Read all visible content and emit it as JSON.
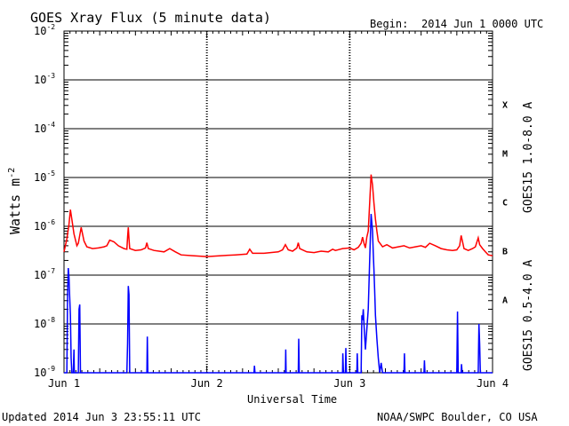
{
  "chart_data": {
    "type": "line",
    "title": "GOES Xray Flux (5 minute data)",
    "begin_label": "Begin:",
    "begin_value": "2014 Jun 1 0000 UTC",
    "xlabel": "Universal Time",
    "ylabel_base": "Watts m",
    "ylabel_sup": "-2",
    "y_scale": "log",
    "ylim": [
      1e-09,
      0.01
    ],
    "y_ticks": [
      {
        "mant": "10",
        "exp": "-9",
        "value": 1e-09
      },
      {
        "mant": "10",
        "exp": "-8",
        "value": 1e-08
      },
      {
        "mant": "10",
        "exp": "-7",
        "value": 1e-07
      },
      {
        "mant": "10",
        "exp": "-6",
        "value": 1e-06
      },
      {
        "mant": "10",
        "exp": "-5",
        "value": 1e-05
      },
      {
        "mant": "10",
        "exp": "-4",
        "value": 0.0001
      },
      {
        "mant": "10",
        "exp": "-3",
        "value": 0.001
      },
      {
        "mant": "10",
        "exp": "-2",
        "value": 0.01
      }
    ],
    "x_ticks": [
      "Jun 1",
      "Jun 2",
      "Jun 3",
      "Jun 4"
    ],
    "x_range_days": [
      0,
      3
    ],
    "flare_classes": [
      {
        "label": "A",
        "min": 1e-08
      },
      {
        "label": "B",
        "min": 1e-07
      },
      {
        "label": "C",
        "min": 1e-06
      },
      {
        "label": "M",
        "min": 1e-05
      },
      {
        "label": "X",
        "min": 0.0001
      }
    ],
    "series": [
      {
        "name": "GOES15 1.0-8.0 A",
        "color": "#ff0000",
        "points": [
          [
            0,
            3e-07
          ],
          [
            0.02,
            5.5e-07
          ],
          [
            0.035,
            1.1e-06
          ],
          [
            0.045,
            2.2e-06
          ],
          [
            0.055,
            1.4e-06
          ],
          [
            0.07,
            7e-07
          ],
          [
            0.09,
            4e-07
          ],
          [
            0.1,
            4.5e-07
          ],
          [
            0.12,
            9.5e-07
          ],
          [
            0.14,
            5e-07
          ],
          [
            0.16,
            3.8e-07
          ],
          [
            0.2,
            3.5e-07
          ],
          [
            0.24,
            3.6e-07
          ],
          [
            0.28,
            3.8e-07
          ],
          [
            0.3,
            4e-07
          ],
          [
            0.32,
            5.2e-07
          ],
          [
            0.35,
            4.8e-07
          ],
          [
            0.38,
            4e-07
          ],
          [
            0.42,
            3.5e-07
          ],
          [
            0.44,
            3.4e-07
          ],
          [
            0.445,
            6e-07
          ],
          [
            0.45,
            9.5e-07
          ],
          [
            0.455,
            5.5e-07
          ],
          [
            0.46,
            3.5e-07
          ],
          [
            0.5,
            3.2e-07
          ],
          [
            0.54,
            3.3e-07
          ],
          [
            0.57,
            3.6e-07
          ],
          [
            0.58,
            4.6e-07
          ],
          [
            0.59,
            3.5e-07
          ],
          [
            0.63,
            3.2e-07
          ],
          [
            0.7,
            3e-07
          ],
          [
            0.74,
            3.5e-07
          ],
          [
            0.78,
            3e-07
          ],
          [
            0.82,
            2.6e-07
          ],
          [
            0.9,
            2.5e-07
          ],
          [
            1.0,
            2.4e-07
          ],
          [
            1.1,
            2.5e-07
          ],
          [
            1.2,
            2.6e-07
          ],
          [
            1.28,
            2.7e-07
          ],
          [
            1.3,
            3.4e-07
          ],
          [
            1.32,
            2.8e-07
          ],
          [
            1.4,
            2.8e-07
          ],
          [
            1.5,
            3e-07
          ],
          [
            1.53,
            3.3e-07
          ],
          [
            1.55,
            4.2e-07
          ],
          [
            1.57,
            3.3e-07
          ],
          [
            1.6,
            3.1e-07
          ],
          [
            1.63,
            3.6e-07
          ],
          [
            1.64,
            4.6e-07
          ],
          [
            1.65,
            3.5e-07
          ],
          [
            1.7,
            3e-07
          ],
          [
            1.75,
            2.9e-07
          ],
          [
            1.8,
            3.1e-07
          ],
          [
            1.85,
            3e-07
          ],
          [
            1.88,
            3.4e-07
          ],
          [
            1.9,
            3.2e-07
          ],
          [
            1.95,
            3.5e-07
          ],
          [
            2.0,
            3.6e-07
          ],
          [
            2.03,
            3.3e-07
          ],
          [
            2.06,
            3.7e-07
          ],
          [
            2.08,
            4.5e-07
          ],
          [
            2.09,
            6e-07
          ],
          [
            2.1,
            4.5e-07
          ],
          [
            2.11,
            3.6e-07
          ],
          [
            2.12,
            6e-07
          ],
          [
            2.13,
            8e-07
          ],
          [
            2.14,
            3e-06
          ],
          [
            2.15,
            1.15e-05
          ],
          [
            2.16,
            7e-06
          ],
          [
            2.17,
            3e-06
          ],
          [
            2.18,
            1.4e-06
          ],
          [
            2.19,
            8e-07
          ],
          [
            2.2,
            5e-07
          ],
          [
            2.23,
            3.8e-07
          ],
          [
            2.26,
            4.2e-07
          ],
          [
            2.3,
            3.6e-07
          ],
          [
            2.34,
            3.8e-07
          ],
          [
            2.38,
            4e-07
          ],
          [
            2.42,
            3.6e-07
          ],
          [
            2.46,
            3.8e-07
          ],
          [
            2.5,
            4e-07
          ],
          [
            2.53,
            3.7e-07
          ],
          [
            2.56,
            4.5e-07
          ],
          [
            2.6,
            4e-07
          ],
          [
            2.64,
            3.5e-07
          ],
          [
            2.68,
            3.3e-07
          ],
          [
            2.72,
            3.2e-07
          ],
          [
            2.75,
            3.3e-07
          ],
          [
            2.77,
            4e-07
          ],
          [
            2.78,
            6.5e-07
          ],
          [
            2.79,
            4.8e-07
          ],
          [
            2.8,
            3.5e-07
          ],
          [
            2.83,
            3.2e-07
          ],
          [
            2.86,
            3.5e-07
          ],
          [
            2.88,
            3.8e-07
          ],
          [
            2.9,
            5.8e-07
          ],
          [
            2.91,
            4.2e-07
          ],
          [
            2.93,
            3.5e-07
          ],
          [
            2.95,
            3e-07
          ],
          [
            2.97,
            2.6e-07
          ],
          [
            3.0,
            2.5e-07
          ]
        ]
      },
      {
        "name": "GOES15 0.5-4.0 A",
        "color": "#0000ff",
        "points": [
          [
            0,
            1e-09
          ],
          [
            0.02,
            1e-09
          ],
          [
            0.025,
            4e-08
          ],
          [
            0.03,
            1.4e-07
          ],
          [
            0.035,
            9e-08
          ],
          [
            0.04,
            3.5e-08
          ],
          [
            0.045,
            1.5e-08
          ],
          [
            0.05,
            2e-09
          ],
          [
            0.055,
            1e-09
          ],
          [
            0.065,
            1e-09
          ],
          [
            0.07,
            3e-09
          ],
          [
            0.072,
            1e-09
          ],
          [
            0.1,
            1e-09
          ],
          [
            0.105,
            2e-08
          ],
          [
            0.11,
            2.5e-08
          ],
          [
            0.115,
            1e-09
          ],
          [
            0.44,
            1e-09
          ],
          [
            0.445,
            4e-09
          ],
          [
            0.45,
            6e-08
          ],
          [
            0.455,
            4e-08
          ],
          [
            0.46,
            1e-09
          ],
          [
            0.58,
            1e-09
          ],
          [
            0.583,
            5.5e-09
          ],
          [
            0.587,
            1e-09
          ],
          [
            1.33,
            1e-09
          ],
          [
            1.333,
            1.4e-09
          ],
          [
            1.337,
            1e-09
          ],
          [
            1.55,
            1e-09
          ],
          [
            1.552,
            3e-09
          ],
          [
            1.555,
            1e-09
          ],
          [
            1.64,
            1e-09
          ],
          [
            1.643,
            5e-09
          ],
          [
            1.647,
            1e-09
          ],
          [
            1.95,
            1e-09
          ],
          [
            1.952,
            2.5e-09
          ],
          [
            1.956,
            1e-09
          ],
          [
            1.97,
            1e-09
          ],
          [
            1.973,
            3.2e-09
          ],
          [
            1.977,
            1e-09
          ],
          [
            2.05,
            1e-09
          ],
          [
            2.053,
            2.5e-09
          ],
          [
            2.057,
            1e-09
          ],
          [
            2.08,
            1e-09
          ],
          [
            2.085,
            1.5e-08
          ],
          [
            2.09,
            1.2e-08
          ],
          [
            2.095,
            2e-08
          ],
          [
            2.1,
            1e-08
          ],
          [
            2.11,
            3e-09
          ],
          [
            2.13,
            2e-08
          ],
          [
            2.14,
            2e-07
          ],
          [
            2.15,
            1.8e-06
          ],
          [
            2.16,
            8e-07
          ],
          [
            2.165,
            3e-07
          ],
          [
            2.17,
            1.3e-07
          ],
          [
            2.175,
            5e-08
          ],
          [
            2.18,
            1.5e-08
          ],
          [
            2.19,
            5e-09
          ],
          [
            2.2,
            2e-09
          ],
          [
            2.21,
            1e-09
          ],
          [
            2.22,
            1.6e-09
          ],
          [
            2.23,
            1e-09
          ],
          [
            2.38,
            1e-09
          ],
          [
            2.383,
            2.5e-09
          ],
          [
            2.387,
            1e-09
          ],
          [
            2.52,
            1e-09
          ],
          [
            2.523,
            1.8e-09
          ],
          [
            2.527,
            1e-09
          ],
          [
            2.75,
            1e-09
          ],
          [
            2.755,
            1.8e-08
          ],
          [
            2.76,
            1e-09
          ],
          [
            2.78,
            1e-09
          ],
          [
            2.783,
            1.5e-09
          ],
          [
            2.787,
            1e-09
          ],
          [
            2.9,
            1e-09
          ],
          [
            2.905,
            1e-08
          ],
          [
            2.91,
            4e-09
          ],
          [
            2.915,
            1e-09
          ],
          [
            3.0,
            1e-09
          ]
        ]
      }
    ]
  },
  "footer": {
    "updated": "Updated 2014 Jun  3 23:55:11 UTC",
    "credit": "NOAA/SWPC Boulder, CO USA"
  }
}
